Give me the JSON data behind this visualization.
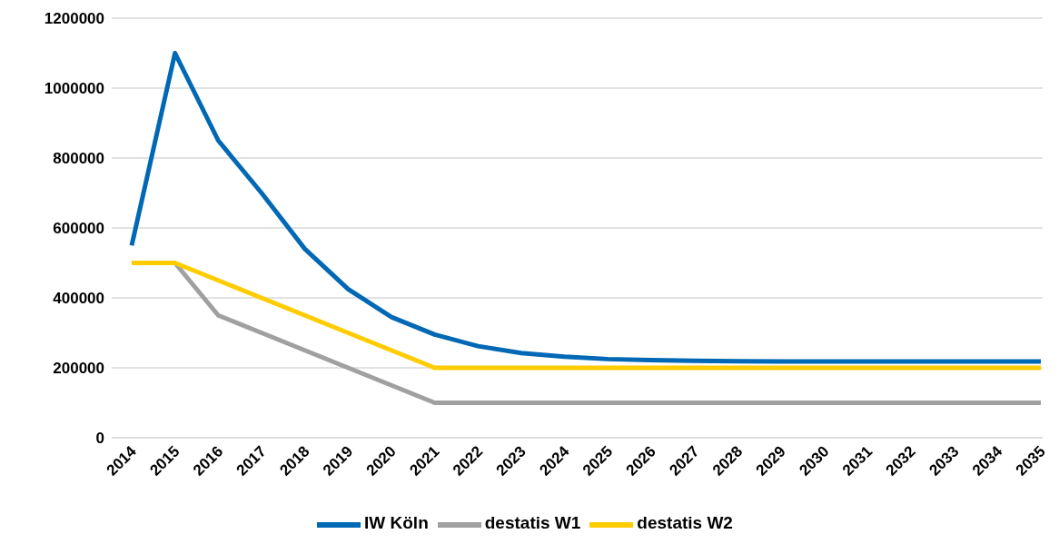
{
  "chart_data": {
    "type": "line",
    "categories": [
      "2014",
      "2015",
      "2016",
      "2017",
      "2018",
      "2019",
      "2020",
      "2021",
      "2022",
      "2023",
      "2024",
      "2025",
      "2026",
      "2027",
      "2028",
      "2029",
      "2030",
      "2031",
      "2032",
      "2033",
      "2034",
      "2035"
    ],
    "series": [
      {
        "name": "IW Köln",
        "color": "#0068b4",
        "values": [
          550000,
          1100000,
          850000,
          700000,
          540000,
          425000,
          345000,
          295000,
          262000,
          242000,
          232000,
          225000,
          222000,
          220000,
          219000,
          218000,
          218000,
          218000,
          218000,
          218000,
          218000,
          218000
        ]
      },
      {
        "name": "destatis W1",
        "color": "#a0a0a0",
        "values": [
          null,
          500000,
          350000,
          300000,
          250000,
          200000,
          150000,
          100000,
          100000,
          100000,
          100000,
          100000,
          100000,
          100000,
          100000,
          100000,
          100000,
          100000,
          100000,
          100000,
          100000,
          100000
        ]
      },
      {
        "name": "destatis W2",
        "color": "#ffcc00",
        "values": [
          500000,
          500000,
          450000,
          400000,
          350000,
          300000,
          250000,
          200000,
          200000,
          200000,
          200000,
          200000,
          200000,
          200000,
          200000,
          200000,
          200000,
          200000,
          200000,
          200000,
          200000,
          200000
        ]
      }
    ],
    "ylim": [
      0,
      1200000
    ],
    "yticks": [
      0,
      200000,
      400000,
      600000,
      800000,
      1000000,
      1200000
    ],
    "grid": "y",
    "legend": "bottom",
    "marker": "none",
    "line_style": "solid"
  }
}
